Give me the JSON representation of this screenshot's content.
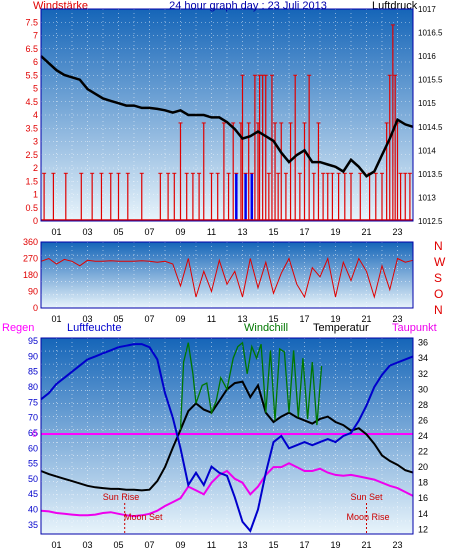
{
  "title": "24 hour graph day : 23 Juli 2013",
  "colors": {
    "wind": "#e00000",
    "pressure": "#000000",
    "direction": "#e00000",
    "temperature": "#000000",
    "windchill": "#007700",
    "dewpoint": "#ee00ee",
    "humidity": "#0000cc",
    "rain": "#ff00ff",
    "sun": "#cc0000",
    "bg_top": "#1565b8",
    "bg_bottom": "#e8f4fb",
    "frame": "#0000aa"
  },
  "x_ticks": [
    "01",
    "03",
    "05",
    "07",
    "09",
    "11",
    "13",
    "15",
    "17",
    "19",
    "21",
    "23"
  ],
  "chart_data": [
    {
      "type": "line",
      "left_label": "Windstärke",
      "right_label": "Luftdruck",
      "x_unit": "hour",
      "xlim": [
        0,
        24
      ],
      "left_ylim": [
        0,
        8
      ],
      "left_ticks": [
        "0",
        "0.5",
        "1",
        "1.5",
        "2",
        "2.5",
        "3",
        "3.5",
        "4",
        "4.5",
        "5",
        "5.5",
        "6",
        "6.5",
        "7",
        "7.5"
      ],
      "right_ylim": [
        1012.5,
        1017
      ],
      "right_ticks": [
        "1012.5",
        "1013",
        "1013.5",
        "1014",
        "1014.5",
        "1015",
        "1015.5",
        "1016",
        "1016.5",
        "1017"
      ],
      "series": [
        {
          "key": "pressure",
          "axis": "right",
          "x": [
            0,
            0.5,
            1,
            1.5,
            2,
            2.5,
            3,
            3.5,
            4,
            4.5,
            5,
            5.5,
            6,
            6.5,
            7,
            7.5,
            8,
            8.5,
            9,
            9.5,
            10,
            10.5,
            11,
            11.5,
            12,
            12.5,
            13,
            13.5,
            14,
            14.5,
            15,
            15.5,
            16,
            16.5,
            17,
            17.5,
            18,
            18.5,
            19,
            19.5,
            20,
            20.5,
            21,
            21.5,
            22,
            22.5,
            23,
            23.5,
            24
          ],
          "y": [
            1016.0,
            1015.85,
            1015.7,
            1015.6,
            1015.55,
            1015.5,
            1015.3,
            1015.2,
            1015.1,
            1015.05,
            1015.0,
            1014.95,
            1014.95,
            1014.9,
            1014.9,
            1014.88,
            1014.85,
            1014.8,
            1014.85,
            1014.75,
            1014.75,
            1014.75,
            1014.7,
            1014.7,
            1014.6,
            1014.45,
            1014.25,
            1014.3,
            1014.4,
            1014.3,
            1014.2,
            1013.95,
            1013.75,
            1013.9,
            1014.0,
            1013.75,
            1013.75,
            1013.7,
            1013.65,
            1013.55,
            1013.8,
            1013.65,
            1013.45,
            1013.55,
            1013.9,
            1014.25,
            1014.65,
            1014.55,
            1014.5
          ]
        },
        {
          "key": "wind",
          "axis": "left",
          "style": "bars",
          "gusts": [
            [
              0.2,
              1.8
            ],
            [
              0.8,
              1.8
            ],
            [
              1.6,
              1.8
            ],
            [
              2.6,
              1.8
            ],
            [
              3.3,
              1.8
            ],
            [
              3.9,
              1.8
            ],
            [
              4.5,
              1.8
            ],
            [
              5.0,
              1.8
            ],
            [
              5.6,
              1.8
            ],
            [
              6.5,
              1.8
            ],
            [
              7.7,
              1.8
            ],
            [
              8.2,
              1.8
            ],
            [
              8.6,
              1.8
            ],
            [
              9.0,
              3.7
            ],
            [
              9.4,
              1.8
            ],
            [
              9.8,
              1.8
            ],
            [
              10.2,
              1.8
            ],
            [
              10.5,
              3.7
            ],
            [
              11.0,
              1.8
            ],
            [
              11.4,
              1.8
            ],
            [
              11.8,
              3.7
            ],
            [
              12.1,
              1.8
            ],
            [
              12.4,
              3.7
            ],
            [
              12.6,
              1.8
            ],
            [
              12.9,
              3.7
            ],
            [
              13.0,
              5.5
            ],
            [
              13.2,
              1.8
            ],
            [
              13.4,
              3.7
            ],
            [
              13.6,
              1.8
            ],
            [
              13.8,
              5.5
            ],
            [
              14.0,
              3.7
            ],
            [
              14.1,
              5.5
            ],
            [
              14.3,
              5.5
            ],
            [
              14.5,
              5.5
            ],
            [
              14.7,
              1.8
            ],
            [
              14.9,
              5.5
            ],
            [
              15.1,
              3.7
            ],
            [
              15.3,
              1.8
            ],
            [
              15.5,
              3.7
            ],
            [
              15.8,
              1.8
            ],
            [
              16.1,
              3.7
            ],
            [
              16.4,
              5.5
            ],
            [
              16.7,
              1.8
            ],
            [
              17.0,
              3.7
            ],
            [
              17.3,
              5.5
            ],
            [
              17.6,
              1.8
            ],
            [
              17.9,
              3.7
            ],
            [
              18.2,
              1.8
            ],
            [
              18.5,
              1.8
            ],
            [
              18.8,
              1.8
            ],
            [
              19.2,
              1.8
            ],
            [
              19.6,
              1.8
            ],
            [
              20.0,
              1.8
            ],
            [
              20.6,
              1.8
            ],
            [
              21.2,
              1.8
            ],
            [
              21.6,
              1.8
            ],
            [
              22.0,
              1.8
            ],
            [
              22.3,
              3.7
            ],
            [
              22.5,
              5.5
            ],
            [
              22.7,
              7.4
            ],
            [
              22.85,
              5.5
            ],
            [
              23.0,
              3.7
            ],
            [
              23.2,
              1.8
            ],
            [
              23.5,
              1.8
            ],
            [
              23.8,
              1.8
            ]
          ],
          "blue_from": 12.6,
          "blue_to": 14.6
        }
      ]
    },
    {
      "type": "scatter",
      "right_label_letters": [
        "N",
        "W",
        "S",
        "O",
        "N"
      ],
      "xlim": [
        0,
        24
      ],
      "ylim": [
        0,
        360
      ],
      "ticks": [
        "0",
        "90",
        "180",
        "270",
        "360"
      ],
      "series": [
        {
          "key": "direction",
          "x": [
            0,
            0.5,
            1,
            1.5,
            2,
            2.5,
            3,
            3.5,
            4,
            4.5,
            5,
            5.5,
            6,
            6.5,
            7,
            7.5,
            8,
            8.5,
            9,
            9.5,
            10,
            10.5,
            11,
            11.5,
            12,
            12.5,
            13,
            13.5,
            14,
            14.5,
            15,
            15.5,
            16,
            16.5,
            17,
            17.5,
            18,
            18.5,
            19,
            19.5,
            20,
            20.5,
            21,
            21.5,
            22,
            22.5,
            23,
            23.5,
            24
          ],
          "y": [
            255,
            270,
            240,
            265,
            255,
            230,
            260,
            255,
            255,
            258,
            255,
            255,
            255,
            258,
            255,
            250,
            255,
            240,
            120,
            270,
            60,
            200,
            90,
            260,
            130,
            200,
            60,
            270,
            110,
            250,
            80,
            190,
            270,
            130,
            60,
            220,
            170,
            270,
            60,
            250,
            150,
            270,
            200,
            60,
            230,
            100,
            270,
            250,
            260
          ]
        }
      ]
    },
    {
      "type": "line",
      "left_labels": [
        "Regen",
        "Luftfeuchte"
      ],
      "center_labels": [
        "Windchill",
        "Temperatur"
      ],
      "right_label": "Taupunkt",
      "xlim": [
        0,
        24
      ],
      "left_ylim": [
        32,
        96
      ],
      "left_ticks": [
        "35",
        "40",
        "45",
        "50",
        "55",
        "60",
        "65",
        "70",
        "75",
        "80",
        "85",
        "90",
        "95"
      ],
      "right_ylim": [
        11.4,
        36.6
      ],
      "right_ticks": [
        "12",
        "14",
        "16",
        "18",
        "20",
        "22",
        "24",
        "26",
        "28",
        "30",
        "32",
        "34",
        "36"
      ],
      "rain_label": "0",
      "annotations": [
        {
          "text": "Sun Rise",
          "x": 5.4,
          "color": "sun"
        },
        {
          "text": "Moon Set",
          "x": 6.0,
          "color": "sun"
        },
        {
          "text": "Sun Set",
          "x": 21.0,
          "color": "sun"
        },
        {
          "text": "Moon Rise",
          "x": 21.0,
          "color": "sun"
        }
      ],
      "series": [
        {
          "key": "temperature",
          "axis": "right",
          "x": [
            0,
            0.5,
            1,
            1.5,
            2,
            2.5,
            3,
            3.5,
            4,
            4.5,
            5,
            5.5,
            6,
            6.5,
            7,
            7.5,
            8,
            8.5,
            9,
            9.5,
            10,
            10.5,
            11,
            11.5,
            12,
            12.5,
            13,
            13.5,
            14,
            14.5,
            15,
            15.5,
            16,
            16.5,
            17,
            17.5,
            18,
            18.5,
            19,
            19.5,
            20,
            20.5,
            21,
            21.5,
            22,
            22.5,
            23,
            23.5,
            24
          ],
          "y": [
            19.5,
            19.1,
            18.8,
            18.5,
            18.2,
            17.9,
            17.6,
            17.4,
            17.3,
            17.2,
            17.2,
            17.1,
            17.1,
            17.0,
            17.1,
            18.2,
            20.0,
            22.5,
            24.8,
            27.2,
            28.2,
            27.4,
            27.0,
            28.5,
            30.0,
            30.8,
            31.0,
            29.0,
            30.5,
            27.0,
            25.8,
            26.5,
            27.0,
            26.4,
            26.0,
            25.6,
            26.2,
            26.5,
            25.8,
            25.4,
            24.7,
            25.0,
            24.2,
            23.0,
            21.5,
            20.8,
            20.3,
            19.6,
            19.3
          ]
        },
        {
          "key": "windchill",
          "axis": "right",
          "x": [
            9.0,
            9.2,
            9.5,
            9.8,
            10.0,
            10.4,
            10.7,
            11.0,
            11.3,
            11.6,
            12.0,
            12.4,
            12.7,
            13.0,
            13.3,
            13.6,
            13.9,
            14.2,
            14.5,
            14.8,
            15.1,
            15.4,
            15.7,
            16.0,
            16.3,
            16.6,
            16.9,
            17.2,
            17.5,
            17.8,
            18.1
          ],
          "y": [
            24.8,
            33.5,
            36.0,
            32.0,
            28.2,
            30.5,
            30.8,
            27.0,
            28.5,
            31.5,
            30.0,
            34.0,
            35.5,
            36.0,
            32.0,
            35.5,
            34.0,
            35.8,
            27.0,
            35.0,
            26.0,
            35.2,
            34.8,
            27.0,
            35.0,
            26.4,
            34.0,
            26.2,
            33.5,
            25.4,
            33.0
          ]
        },
        {
          "key": "dewpoint",
          "axis": "right",
          "x": [
            0,
            0.5,
            1,
            1.5,
            2,
            2.5,
            3,
            3.5,
            4,
            4.5,
            5,
            5.5,
            6,
            6.5,
            7,
            7.5,
            8,
            8.5,
            9,
            9.5,
            10,
            10.5,
            11,
            11.5,
            12,
            12.5,
            13,
            13.5,
            14,
            14.5,
            15,
            15.5,
            16,
            16.5,
            17,
            17.5,
            18,
            18.5,
            19,
            19.5,
            20,
            20.5,
            21,
            21.5,
            22,
            22.5,
            23,
            23.5,
            24
          ],
          "y": [
            14.4,
            14.3,
            14.1,
            14.0,
            13.9,
            13.8,
            13.8,
            13.9,
            14.1,
            14.2,
            14.0,
            13.8,
            13.7,
            13.8,
            14.0,
            14.4,
            15.0,
            15.5,
            16.0,
            17.5,
            17.0,
            16.5,
            18.0,
            19.0,
            19.5,
            18.5,
            18.0,
            16.5,
            17.5,
            19.0,
            20.0,
            20.0,
            20.5,
            20.0,
            19.5,
            19.5,
            19.8,
            19.3,
            19.0,
            18.9,
            19.0,
            18.8,
            18.6,
            18.4,
            18.0,
            17.6,
            17.3,
            16.8,
            16.3
          ]
        },
        {
          "key": "humidity",
          "axis": "left",
          "x": [
            0,
            0.5,
            1,
            1.5,
            2,
            2.5,
            3,
            3.5,
            4,
            4.5,
            5,
            5.5,
            6,
            6.5,
            7,
            7.5,
            8,
            8.5,
            9,
            9.5,
            10,
            10.5,
            11,
            11.5,
            12,
            12.5,
            13,
            13.5,
            14,
            14.5,
            15,
            15.5,
            16,
            16.5,
            17,
            17.5,
            18,
            18.5,
            19,
            19.5,
            20,
            20.5,
            21,
            21.5,
            22,
            22.5,
            23,
            23.5,
            24
          ],
          "y": [
            76,
            78,
            81,
            83,
            85,
            87,
            89,
            90,
            91,
            92,
            93,
            93.5,
            94,
            94,
            93,
            89,
            78,
            70,
            60,
            48,
            52,
            48,
            54,
            52,
            51,
            44,
            36,
            33,
            40,
            52,
            62,
            64,
            60,
            61,
            62,
            61,
            62,
            63,
            62,
            64,
            65,
            69,
            74,
            80,
            84,
            87,
            88,
            89,
            90
          ]
        }
      ]
    }
  ]
}
